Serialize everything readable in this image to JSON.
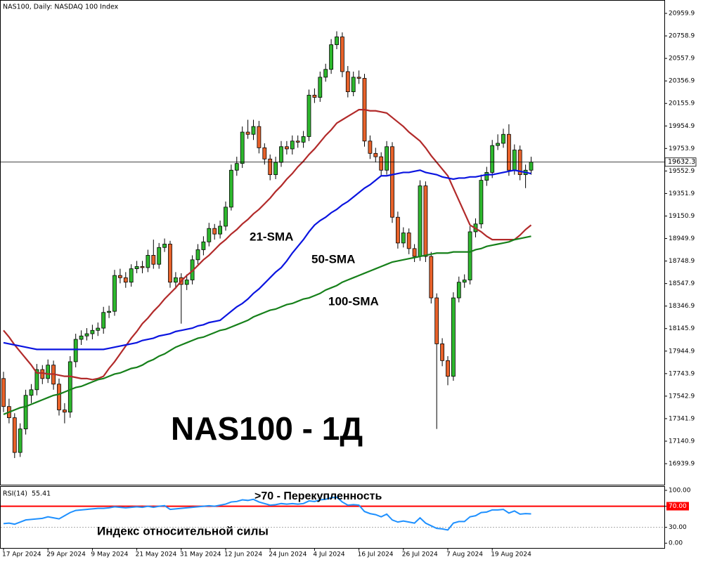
{
  "chart_data": [
    {
      "type": "candlestick",
      "title": "NAS100, Daily:  NASDAQ 100 Index",
      "x": [
        "17 Apr 2024",
        null,
        null,
        null,
        null,
        null,
        null,
        null,
        "29 Apr 2024",
        null,
        null,
        null,
        null,
        null,
        null,
        null,
        "9 May 2024",
        null,
        null,
        null,
        null,
        null,
        null,
        null,
        "21 May 2024",
        null,
        null,
        null,
        null,
        null,
        null,
        null,
        "31 May 2024",
        null,
        null,
        null,
        null,
        null,
        null,
        null,
        "12 Jun 2024",
        null,
        null,
        null,
        null,
        null,
        null,
        null,
        "24 Jun 2024",
        null,
        null,
        null,
        null,
        null,
        null,
        null,
        "4 Jul 2024",
        null,
        null,
        null,
        null,
        null,
        null,
        null,
        "16 Jul 2024",
        null,
        null,
        null,
        null,
        null,
        null,
        null,
        "26 Jul 2024",
        null,
        null,
        null,
        null,
        null,
        null,
        null,
        "7 Aug 2024",
        null,
        null,
        null,
        null,
        null,
        null,
        null,
        "19 Aug 2024",
        null,
        null,
        null,
        null,
        null,
        null,
        null
      ],
      "ohlc": [
        [
          17700,
          17760,
          17400,
          17450
        ],
        [
          17450,
          17520,
          17300,
          17350
        ],
        [
          17350,
          17390,
          16990,
          17040
        ],
        [
          17040,
          17300,
          17000,
          17250
        ],
        [
          17250,
          17600,
          17200,
          17550
        ],
        [
          17550,
          17650,
          17480,
          17600
        ],
        [
          17600,
          17830,
          17550,
          17780
        ],
        [
          17780,
          17820,
          17650,
          17700
        ],
        [
          17700,
          17870,
          17660,
          17820
        ],
        [
          17820,
          17860,
          17600,
          17650
        ],
        [
          17650,
          17700,
          17370,
          17420
        ],
        [
          17420,
          17480,
          17300,
          17400
        ],
        [
          17400,
          17900,
          17350,
          17850
        ],
        [
          17850,
          18100,
          17800,
          18050
        ],
        [
          18050,
          18130,
          18000,
          18080
        ],
        [
          18080,
          18150,
          18040,
          18100
        ],
        [
          18100,
          18180,
          18050,
          18130
        ],
        [
          18130,
          18200,
          18080,
          18150
        ],
        [
          18150,
          18340,
          18100,
          18290
        ],
        [
          18290,
          18350,
          18240,
          18300
        ],
        [
          18300,
          18670,
          18260,
          18620
        ],
        [
          18620,
          18680,
          18550,
          18600
        ],
        [
          18600,
          18650,
          18510,
          18560
        ],
        [
          18560,
          18720,
          18520,
          18680
        ],
        [
          18680,
          18750,
          18640,
          18700
        ],
        [
          18700,
          18750,
          18640,
          18690
        ],
        [
          18690,
          18850,
          18650,
          18800
        ],
        [
          18800,
          18940,
          18680,
          18720
        ],
        [
          18720,
          18910,
          18680,
          18870
        ],
        [
          18870,
          18950,
          18830,
          18900
        ],
        [
          18900,
          18930,
          18510,
          18560
        ],
        [
          18560,
          18650,
          18500,
          18600
        ],
        [
          18600,
          18640,
          18190,
          18540
        ],
        [
          18540,
          18630,
          18490,
          18580
        ],
        [
          18580,
          18800,
          18540,
          18760
        ],
        [
          18760,
          18900,
          18720,
          18850
        ],
        [
          18850,
          18970,
          18800,
          18920
        ],
        [
          18920,
          19090,
          18880,
          19040
        ],
        [
          19040,
          19080,
          18940,
          18990
        ],
        [
          18990,
          19110,
          18950,
          19060
        ],
        [
          19060,
          19280,
          19020,
          19230
        ],
        [
          19230,
          19610,
          19200,
          19560
        ],
        [
          19560,
          19680,
          19510,
          19620
        ],
        [
          19620,
          19950,
          19580,
          19900
        ],
        [
          19900,
          20010,
          19840,
          19880
        ],
        [
          19880,
          20010,
          19830,
          19950
        ],
        [
          19950,
          20000,
          19710,
          19760
        ],
        [
          19760,
          19800,
          19610,
          19660
        ],
        [
          19660,
          19700,
          19470,
          19520
        ],
        [
          19520,
          19680,
          19480,
          19630
        ],
        [
          19630,
          19820,
          19590,
          19770
        ],
        [
          19770,
          19820,
          19700,
          19750
        ],
        [
          19750,
          19870,
          19700,
          19820
        ],
        [
          19820,
          19870,
          19760,
          19810
        ],
        [
          19810,
          19910,
          19760,
          19860
        ],
        [
          19860,
          20280,
          19820,
          20230
        ],
        [
          20230,
          20290,
          20160,
          20210
        ],
        [
          20210,
          20440,
          20170,
          20390
        ],
        [
          20390,
          20510,
          20350,
          20460
        ],
        [
          20460,
          20730,
          20420,
          20680
        ],
        [
          20680,
          20800,
          20640,
          20750
        ],
        [
          20750,
          20790,
          20390,
          20440
        ],
        [
          20440,
          20490,
          20210,
          20260
        ],
        [
          20260,
          20440,
          20220,
          20390
        ],
        [
          20390,
          20450,
          20330,
          20380
        ],
        [
          20380,
          20420,
          19770,
          19820
        ],
        [
          19820,
          19870,
          19660,
          19710
        ],
        [
          19710,
          19760,
          19630,
          19680
        ],
        [
          19680,
          19720,
          19510,
          19560
        ],
        [
          19560,
          19820,
          19520,
          19770
        ],
        [
          19770,
          19810,
          19090,
          19140
        ],
        [
          19140,
          19190,
          18860,
          18910
        ],
        [
          18910,
          19050,
          18870,
          19000
        ],
        [
          19000,
          19040,
          18810,
          18860
        ],
        [
          18860,
          18900,
          18740,
          18790
        ],
        [
          18790,
          19470,
          18750,
          19420
        ],
        [
          19420,
          19460,
          18740,
          18790
        ],
        [
          18790,
          18830,
          18370,
          18420
        ],
        [
          18420,
          18460,
          17250,
          18010
        ],
        [
          18010,
          18060,
          17810,
          17860
        ],
        [
          17860,
          17900,
          17640,
          17720
        ],
        [
          17720,
          18470,
          17680,
          18420
        ],
        [
          18420,
          18610,
          18380,
          18560
        ],
        [
          18560,
          18630,
          18510,
          18580
        ],
        [
          18580,
          19060,
          18540,
          19010
        ],
        [
          19010,
          19130,
          18960,
          19080
        ],
        [
          19080,
          19520,
          19040,
          19470
        ],
        [
          19470,
          19590,
          19420,
          19540
        ],
        [
          19540,
          19830,
          19490,
          19780
        ],
        [
          19780,
          19880,
          19740,
          19800
        ],
        [
          19800,
          19930,
          19760,
          19880
        ],
        [
          19880,
          19970,
          19510,
          19560
        ],
        [
          19560,
          19790,
          19520,
          19740
        ],
        [
          19740,
          19780,
          19470,
          19520
        ],
        [
          19520,
          19610,
          19400,
          19560
        ],
        [
          19560,
          19680,
          19520,
          19632.3
        ]
      ],
      "up_color": "#2eb82e",
      "down_color": "#e8622a",
      "series": [
        {
          "name": "21-SMA",
          "color": "#b22a2a",
          "values": [
            18130,
            18070,
            18000,
            17940,
            17880,
            17820,
            17750,
            17750,
            17740,
            17740,
            17730,
            17720,
            17720,
            17710,
            17700,
            17700,
            17690,
            17700,
            17720,
            17790,
            17850,
            17920,
            17990,
            18060,
            18120,
            18190,
            18240,
            18300,
            18350,
            18410,
            18460,
            18510,
            18570,
            18620,
            18660,
            18710,
            18760,
            18800,
            18850,
            18900,
            18940,
            18990,
            19030,
            19080,
            19120,
            19170,
            19210,
            19260,
            19310,
            19370,
            19420,
            19480,
            19530,
            19590,
            19640,
            19700,
            19750,
            19810,
            19870,
            19920,
            19980,
            20010,
            20040,
            20070,
            20100,
            20100,
            20090,
            20090,
            20080,
            20070,
            20030,
            19990,
            19950,
            19900,
            19860,
            19820,
            19760,
            19690,
            19630,
            19570,
            19510,
            19400,
            19290,
            19180,
            19070,
            19040,
            19010,
            18970,
            18940,
            18940,
            18940,
            18940,
            18940,
            18980,
            19030,
            19070
          ]
        },
        {
          "name": "50-SMA",
          "color": "#0a14e0",
          "values": [
            18020,
            18010,
            18000,
            17990,
            17980,
            17970,
            17960,
            17960,
            17960,
            17960,
            17960,
            17960,
            17960,
            17960,
            17960,
            17960,
            17960,
            17960,
            17960,
            17970,
            17980,
            17990,
            18000,
            18010,
            18020,
            18040,
            18050,
            18060,
            18080,
            18090,
            18100,
            18120,
            18130,
            18140,
            18150,
            18170,
            18180,
            18200,
            18210,
            18220,
            18260,
            18300,
            18340,
            18370,
            18410,
            18460,
            18500,
            18550,
            18600,
            18650,
            18690,
            18750,
            18820,
            18880,
            18940,
            19010,
            19070,
            19110,
            19140,
            19180,
            19210,
            19250,
            19280,
            19320,
            19360,
            19400,
            19430,
            19470,
            19510,
            19510,
            19520,
            19530,
            19540,
            19540,
            19550,
            19560,
            19540,
            19530,
            19520,
            19500,
            19490,
            19480,
            19490,
            19490,
            19500,
            19500,
            19510,
            19520,
            19520,
            19530,
            19540,
            19550,
            19560,
            19550,
            19540,
            19530
          ]
        },
        {
          "name": "100-SMA",
          "color": "#16801a",
          "values": [
            17380,
            17400,
            17420,
            17440,
            17450,
            17470,
            17490,
            17510,
            17530,
            17550,
            17560,
            17580,
            17600,
            17620,
            17630,
            17650,
            17670,
            17690,
            17700,
            17720,
            17740,
            17750,
            17770,
            17790,
            17800,
            17820,
            17850,
            17870,
            17900,
            17920,
            17950,
            17980,
            18000,
            18020,
            18040,
            18060,
            18070,
            18090,
            18110,
            18130,
            18140,
            18160,
            18180,
            18200,
            18220,
            18250,
            18270,
            18290,
            18310,
            18320,
            18340,
            18360,
            18370,
            18390,
            18410,
            18420,
            18440,
            18460,
            18490,
            18510,
            18530,
            18560,
            18580,
            18600,
            18620,
            18640,
            18660,
            18680,
            18700,
            18720,
            18740,
            18750,
            18760,
            18770,
            18780,
            18790,
            18800,
            18810,
            18820,
            18820,
            18820,
            18830,
            18830,
            18830,
            18830,
            18850,
            18860,
            18880,
            18890,
            18900,
            18910,
            18920,
            18940,
            18950,
            18960,
            18970
          ]
        }
      ],
      "ylim": [
        16752,
        21073
      ],
      "yticks": [
        16939.9,
        17140.9,
        17341.9,
        17542.9,
        17743.9,
        17944.9,
        18145.9,
        18346.9,
        18547.9,
        18748.9,
        18949.9,
        19150.9,
        19351.9,
        19552.9,
        19753.9,
        19954.9,
        20155.9,
        20356.9,
        20557.9,
        20758.9,
        20959.9
      ],
      "annotations": [
        "NAS100 - 1Д"
      ]
    },
    {
      "type": "line",
      "title": "RSI(14)",
      "color": "#1e90ff",
      "level_color": "#ff0000",
      "values": [
        37,
        38,
        36,
        40,
        44,
        45,
        46,
        47,
        50,
        48,
        46,
        52,
        58,
        62,
        63,
        64,
        65,
        66,
        66,
        67,
        69,
        68,
        67,
        68,
        69,
        68,
        70,
        68,
        70,
        71,
        64,
        65,
        66,
        67,
        68,
        69,
        70,
        71,
        70,
        72,
        74,
        78,
        79,
        82,
        81,
        83,
        78,
        75,
        72,
        73,
        75,
        74,
        75,
        74,
        75,
        80,
        79,
        82,
        83,
        86,
        87,
        78,
        72,
        73,
        72,
        60,
        56,
        54,
        50,
        55,
        44,
        40,
        42,
        40,
        38,
        48,
        38,
        33,
        28,
        27,
        25,
        38,
        41,
        41,
        50,
        52,
        58,
        59,
        63,
        63,
        64,
        57,
        61,
        55,
        56,
        55.41
      ],
      "ylim": [
        -9,
        108
      ],
      "yticks": [
        {
          "value": 100,
          "label": "100.00"
        },
        {
          "value": 70,
          "label": "70.00"
        },
        {
          "value": 30,
          "label": "30.00"
        },
        {
          "value": 0,
          "label": "0.00"
        }
      ],
      "annotations": [
        ">70 - Перекупленность",
        "Индекс относительной силы"
      ]
    }
  ]
}
